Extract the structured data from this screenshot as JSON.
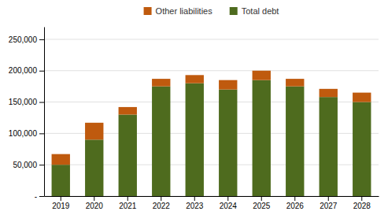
{
  "chart_data": {
    "type": "bar",
    "stacked": true,
    "grid": true,
    "legend": "top",
    "categories": [
      "2019",
      "2020",
      "2021",
      "2022",
      "2023",
      "2024",
      "2025",
      "2026",
      "2027",
      "2028"
    ],
    "series": [
      {
        "name": "Total debt",
        "color": "#4e6b1e",
        "values": [
          50000,
          90000,
          130000,
          175000,
          180000,
          170000,
          185000,
          175000,
          158000,
          150000
        ]
      },
      {
        "name": "Other liabilities",
        "color": "#bf5a0e",
        "values": [
          17000,
          27000,
          12000,
          12000,
          13000,
          15000,
          15000,
          12000,
          13000,
          15000
        ]
      }
    ],
    "ylim": [
      0,
      270000
    ],
    "yticks": [
      {
        "value": 0,
        "label": "-"
      },
      {
        "value": 50000,
        "label": "50,000"
      },
      {
        "value": 100000,
        "label": "100,000"
      },
      {
        "value": 150000,
        "label": "150,000"
      },
      {
        "value": 200000,
        "label": "200,000"
      },
      {
        "value": 250000,
        "label": "250,000"
      }
    ]
  }
}
